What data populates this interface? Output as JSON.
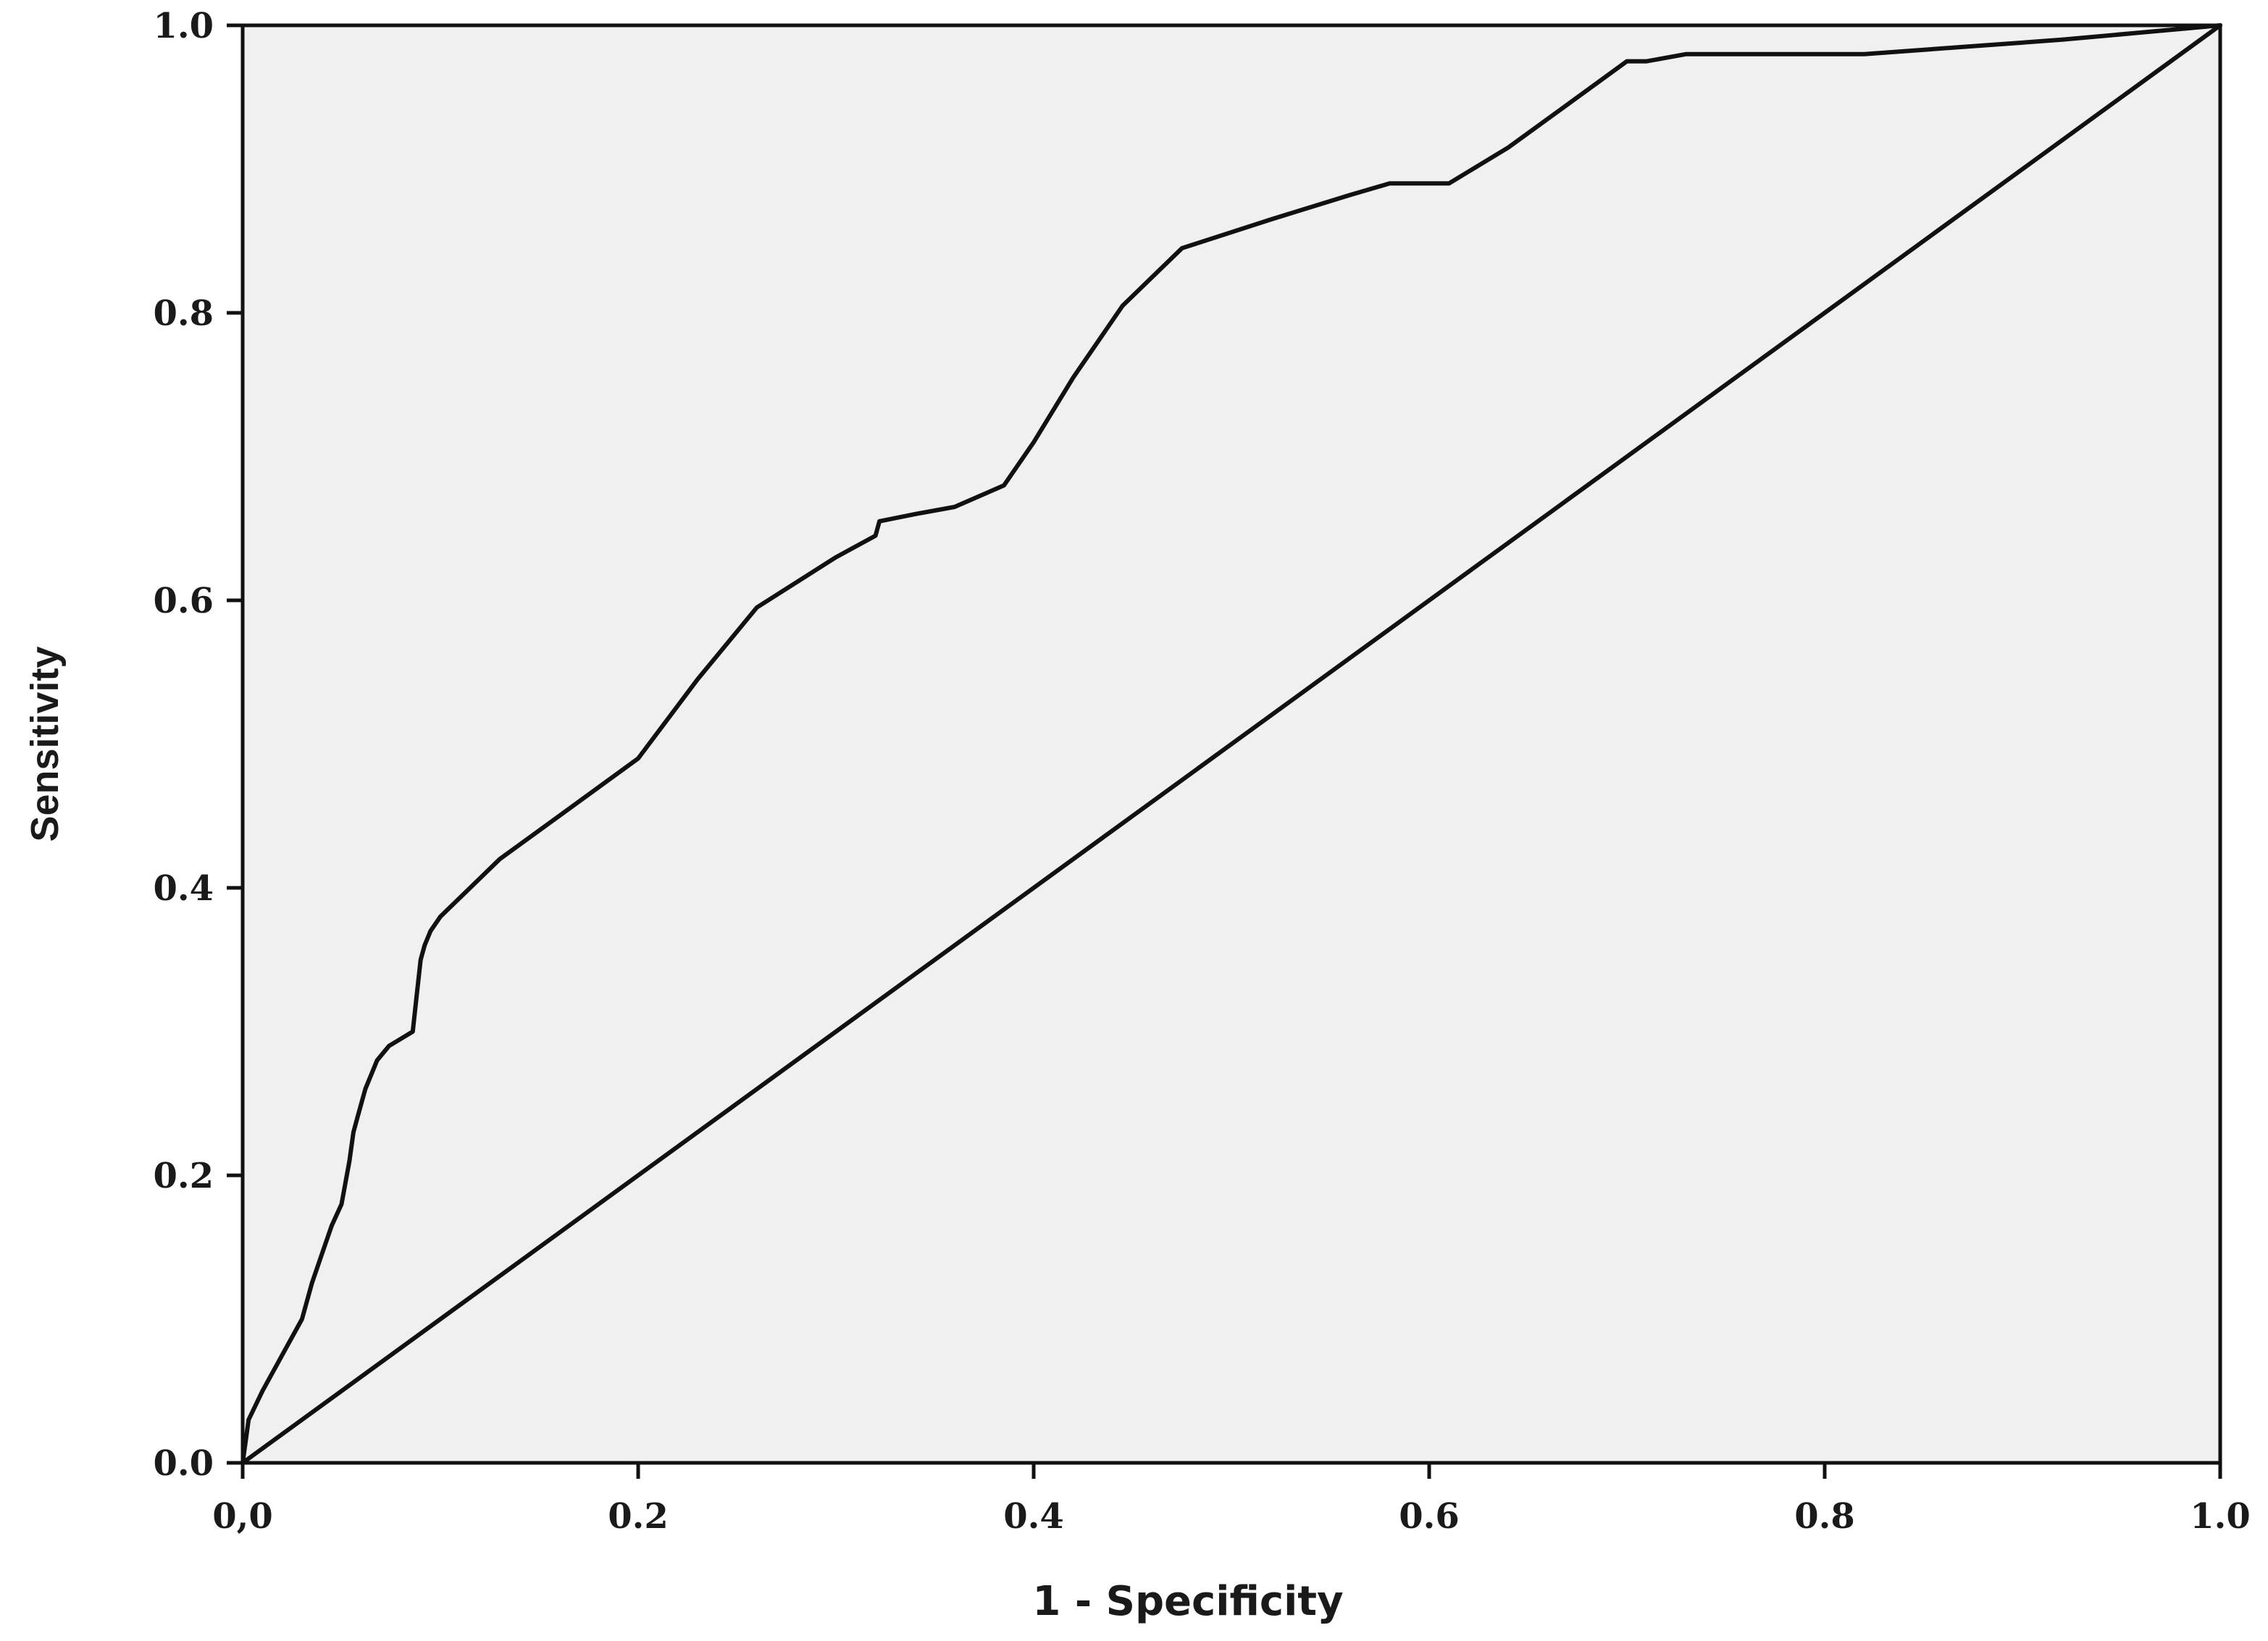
{
  "chart_data": {
    "type": "line",
    "title": "",
    "xlabel": "1 - Specificity",
    "ylabel": "Sensitivity",
    "xlim": [
      0,
      1
    ],
    "ylim": [
      0,
      1
    ],
    "grid": false,
    "x_ticks": [
      {
        "value": 0,
        "label": "0,0"
      },
      {
        "value": 0.2,
        "label": "0.2"
      },
      {
        "value": 0.4,
        "label": "0.4"
      },
      {
        "value": 0.6,
        "label": "0.6"
      },
      {
        "value": 0.8,
        "label": "0.8"
      },
      {
        "value": 1,
        "label": "1.0"
      }
    ],
    "y_ticks": [
      {
        "value": 0,
        "label": "0.0"
      },
      {
        "value": 0.2,
        "label": "0.2"
      },
      {
        "value": 0.4,
        "label": "0.4"
      },
      {
        "value": 0.6,
        "label": "0.6"
      },
      {
        "value": 0.8,
        "label": "0.8"
      },
      {
        "value": 1,
        "label": "1.0"
      }
    ],
    "colors": {
      "plot_background": "#f0f0f0",
      "line": "#111111",
      "frame": "#111111"
    },
    "series": [
      {
        "x": [
          0,
          0.003,
          0.01,
          0.02,
          0.03,
          0.035,
          0.04,
          0.045,
          0.05,
          0.054,
          0.056,
          0.058,
          0.062,
          0.068,
          0.074,
          0.08,
          0.086,
          0.088,
          0.09,
          0.092,
          0.095,
          0.1,
          0.13,
          0.16,
          0.2,
          0.23,
          0.26,
          0.3,
          0.32,
          0.322,
          0.34,
          0.36,
          0.385,
          0.4,
          0.42,
          0.445,
          0.475,
          0.52,
          0.56,
          0.58,
          0.61,
          0.64,
          0.67,
          0.7,
          0.705,
          0.71,
          0.73,
          0.78,
          0.82,
          0.87,
          0.92,
          0.96,
          1.0
        ],
        "y": [
          0,
          0.03,
          0.05,
          0.075,
          0.1,
          0.125,
          0.145,
          0.165,
          0.18,
          0.21,
          0.23,
          0.24,
          0.26,
          0.28,
          0.29,
          0.295,
          0.3,
          0.325,
          0.35,
          0.36,
          0.37,
          0.38,
          0.42,
          0.45,
          0.49,
          0.545,
          0.595,
          0.63,
          0.645,
          0.655,
          0.66,
          0.665,
          0.68,
          0.71,
          0.755,
          0.805,
          0.845,
          0.865,
          0.882,
          0.89,
          0.89,
          0.915,
          0.945,
          0.975,
          0.975,
          0.975,
          0.98,
          0.98,
          0.98,
          0.985,
          0.99,
          0.995,
          1.0
        ]
      },
      {
        "x": [
          0,
          1
        ],
        "y": [
          0,
          1
        ]
      }
    ]
  }
}
